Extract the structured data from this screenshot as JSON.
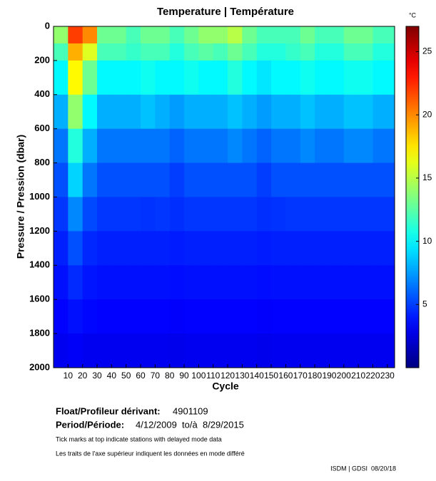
{
  "chart_data": {
    "type": "heatmap",
    "title": "Temperature | Température",
    "xlabel": "Cycle",
    "ylabel": "Pressure / Pression (dbar)",
    "x_edges": [
      0,
      10,
      20,
      30,
      40,
      50,
      60,
      70,
      80,
      90,
      100,
      110,
      120,
      130,
      140,
      150,
      160,
      170,
      180,
      190,
      200,
      210,
      220,
      230,
      235
    ],
    "y_edges": [
      0,
      100,
      200,
      400,
      600,
      800,
      1000,
      1200,
      1400,
      1600,
      1800,
      2000
    ],
    "z": [
      [
        14,
        22,
        20,
        13,
        13,
        12,
        13,
        13,
        12,
        13,
        14,
        14,
        15,
        13,
        12,
        12,
        12,
        13,
        12,
        12,
        13,
        13,
        12,
        12
      ],
      [
        12,
        19,
        16,
        12,
        12,
        11.5,
        12,
        12,
        11,
        12,
        12.5,
        12,
        13,
        12,
        11,
        11,
        11.5,
        12,
        11,
        11,
        12,
        12,
        11,
        11
      ],
      [
        10,
        17,
        13,
        10,
        10,
        10,
        10.5,
        10,
        10,
        10.5,
        10,
        10,
        11,
        10,
        9.5,
        10,
        10,
        10.5,
        10,
        10,
        10.5,
        10.5,
        10,
        10
      ],
      [
        8,
        14,
        10,
        8,
        8,
        8,
        8.5,
        8,
        7.5,
        8,
        8,
        8,
        8.5,
        8,
        7.5,
        8,
        8,
        8.5,
        8,
        8,
        8.5,
        8.5,
        8,
        8
      ],
      [
        6.5,
        11,
        8,
        6.5,
        6.5,
        6.5,
        6.5,
        6.5,
        6,
        6.5,
        6.5,
        6.5,
        7,
        6.5,
        6,
        6.5,
        6.5,
        7,
        6.5,
        6.5,
        7,
        7,
        6.5,
        6.5
      ],
      [
        5.5,
        9,
        6.5,
        5.5,
        5.5,
        5.5,
        5.5,
        5.5,
        5,
        5.5,
        5.5,
        5.5,
        5.5,
        5.5,
        5,
        5.5,
        5.5,
        5.5,
        5.5,
        5.5,
        5.5,
        5.5,
        5.5,
        5.5
      ],
      [
        4.8,
        7,
        5.3,
        4.8,
        4.8,
        4.8,
        4.7,
        4.8,
        4.6,
        4.8,
        4.8,
        4.8,
        4.8,
        4.8,
        4.6,
        4.7,
        4.8,
        4.8,
        4.8,
        4.8,
        4.8,
        4.8,
        4.8,
        4.8
      ],
      [
        4.2,
        5.5,
        4.4,
        4.2,
        4.2,
        4.2,
        4.2,
        4.2,
        4.1,
        4.2,
        4.2,
        4.2,
        4.2,
        4.2,
        4.1,
        4.2,
        4.2,
        4.2,
        4.2,
        4.2,
        4.2,
        4.2,
        4.2,
        4.2
      ],
      [
        3.8,
        4.5,
        3.9,
        3.8,
        3.8,
        3.8,
        3.8,
        3.8,
        3.7,
        3.8,
        3.8,
        3.8,
        3.8,
        3.8,
        3.7,
        3.8,
        3.8,
        3.8,
        3.8,
        3.8,
        3.8,
        3.8,
        3.8,
        3.8
      ],
      [
        3.4,
        3.8,
        3.5,
        3.4,
        3.4,
        3.4,
        3.4,
        3.4,
        3.3,
        3.4,
        3.4,
        3.4,
        3.4,
        3.4,
        3.3,
        3.4,
        3.4,
        3.4,
        3.4,
        3.4,
        3.4,
        3.4,
        3.4,
        3.4
      ],
      [
        3,
        3.2,
        3,
        3,
        3,
        3,
        3,
        3,
        2.9,
        3,
        3,
        3,
        3,
        3,
        2.9,
        3,
        3,
        3,
        3,
        3,
        3,
        3,
        3,
        3
      ]
    ],
    "xlim": [
      0,
      235
    ],
    "ylim": [
      0,
      2000
    ],
    "y_inverted": true,
    "xticks": [
      10,
      20,
      30,
      40,
      50,
      60,
      70,
      80,
      90,
      100,
      110,
      120,
      130,
      140,
      150,
      160,
      170,
      180,
      190,
      200,
      210,
      220,
      230
    ],
    "yticks": [
      0,
      200,
      400,
      600,
      800,
      1000,
      1200,
      1400,
      1600,
      1800,
      2000
    ],
    "colorbar": {
      "label": "°C",
      "lim": [
        0,
        27
      ],
      "ticks": [
        5,
        10,
        15,
        20,
        25
      ],
      "colormap": "jet"
    }
  },
  "info": {
    "float_label": "Float/Profileur dérivant:",
    "float_id": "4901109",
    "period_label": "Period/Période:",
    "period": "4/12/2009  to/à  8/29/2015",
    "note_en": "Tick marks at top indicate stations with delayed mode data",
    "note_fr": "Les traits de l'axe supérieur indiquent les données en mode différé",
    "footer": "ISDM | GDSI  08/20/18"
  }
}
